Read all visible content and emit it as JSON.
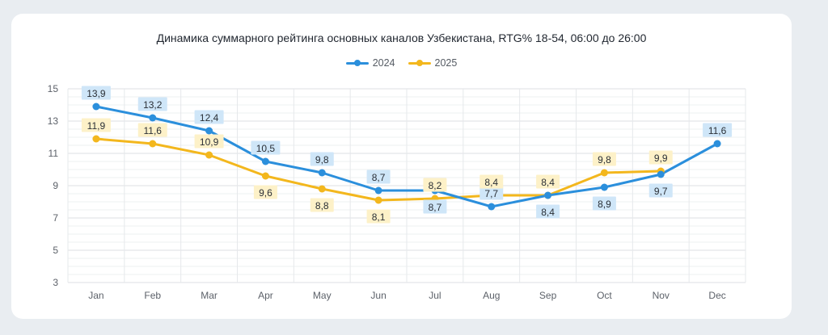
{
  "chart_data": {
    "type": "line",
    "title": "Динамика суммарного рейтинга основных каналов Узбекистана, RTG% 18-54, 06:00 до 26:00",
    "xlabel": "",
    "ylabel": "",
    "categories": [
      "Jan",
      "Feb",
      "Mar",
      "Apr",
      "May",
      "Jun",
      "Jul",
      "Aug",
      "Sep",
      "Oct",
      "Nov",
      "Dec"
    ],
    "ylim": [
      3,
      15
    ],
    "yticks": [
      3,
      5,
      7,
      9,
      11,
      13,
      15
    ],
    "grid": true,
    "legend_position": "top-center",
    "series": [
      {
        "name": "2024",
        "color": "#2b8fdc",
        "label_bg": "#cfe6f8",
        "values": [
          13.9,
          13.2,
          12.4,
          10.5,
          9.8,
          8.7,
          8.7,
          7.7,
          8.4,
          8.9,
          9.7,
          11.6
        ],
        "labels": [
          "13,9",
          "13,2",
          "12,4",
          "10,5",
          "9,8",
          "8,7",
          "8,7",
          "7,7",
          "8,4",
          "8,9",
          "9,7",
          "11,6"
        ],
        "label_pos": [
          "above",
          "above",
          "above",
          "above",
          "above",
          "above",
          "below",
          "above",
          "below",
          "below",
          "below",
          "above"
        ]
      },
      {
        "name": "2025",
        "color": "#f3b71d",
        "label_bg": "#fdf1c8",
        "values": [
          11.9,
          11.6,
          10.9,
          9.6,
          8.8,
          8.1,
          8.2,
          8.4,
          8.4,
          9.8,
          9.9,
          null
        ],
        "labels": [
          "11,9",
          "11,6",
          "10,9",
          "9,6",
          "8,8",
          "8,1",
          "8,2",
          "8,4",
          "8,4",
          "9,8",
          "9,9",
          ""
        ],
        "label_pos": [
          "above",
          "above",
          "above",
          "below",
          "below",
          "below",
          "above",
          "above",
          "above",
          "above",
          "above",
          "above"
        ]
      }
    ]
  }
}
